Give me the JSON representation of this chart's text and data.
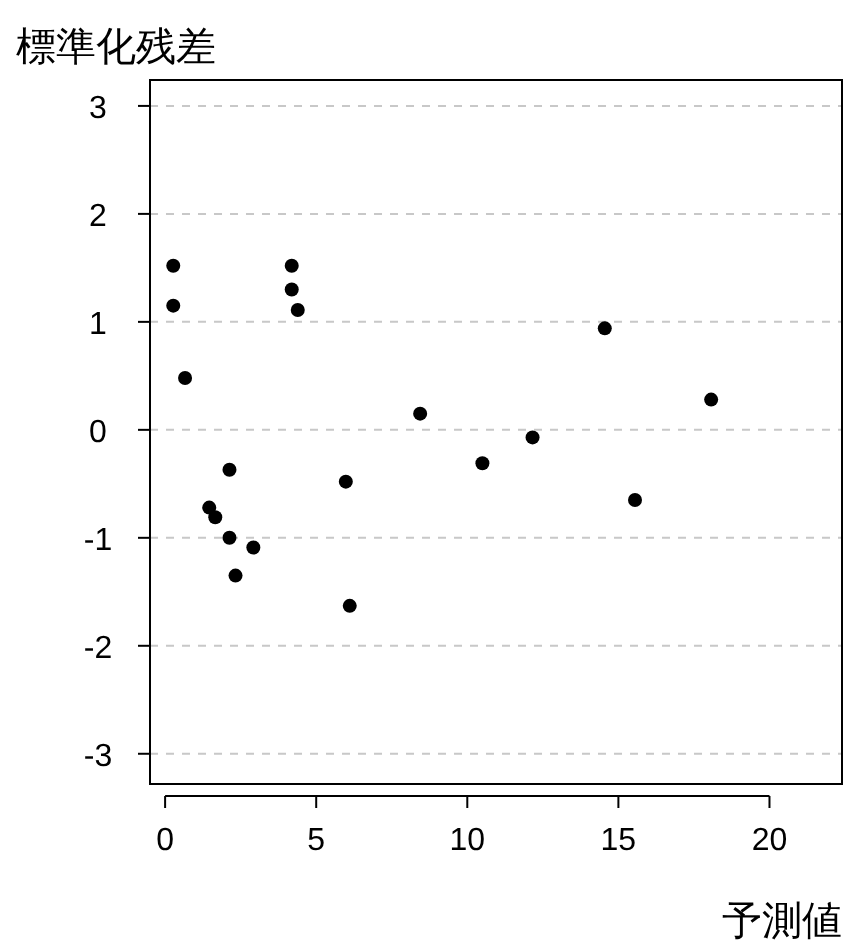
{
  "chart_data": {
    "type": "scatter",
    "ylabel": "標準化残差",
    "xlabel": "予測値",
    "x": [
      0.27,
      0.27,
      0.66,
      1.46,
      1.66,
      2.13,
      2.13,
      2.33,
      2.92,
      4.19,
      4.19,
      4.39,
      5.98,
      6.11,
      8.44,
      10.5,
      12.16,
      14.55,
      15.55,
      18.07
    ],
    "series": [
      {
        "color": "#000000",
        "values": [
          1.52,
          1.15,
          0.48,
          -0.72,
          -0.81,
          -0.37,
          -1.0,
          -1.35,
          -1.09,
          1.52,
          1.3,
          1.11,
          -0.48,
          -1.63,
          0.15,
          -0.31,
          -0.07,
          0.94,
          -0.65,
          0.28
        ]
      }
    ],
    "xlim": [
      -0.5,
      22.4
    ],
    "ylim": [
      -3.28,
      3.24
    ],
    "xticks": [
      0,
      5,
      10,
      15,
      20
    ],
    "yticks": [
      -3,
      -2,
      -1,
      0,
      1,
      2,
      3
    ],
    "grid": "y",
    "marker": "circle"
  }
}
